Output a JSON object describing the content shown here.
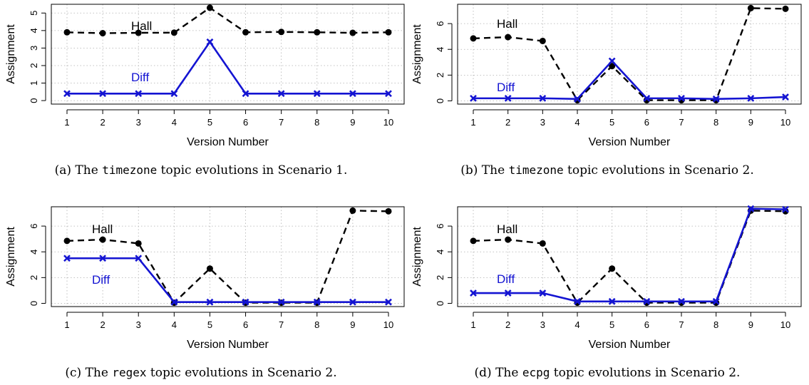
{
  "colors": {
    "hall": "#000000",
    "diff": "#1414d2"
  },
  "chart_data": [
    {
      "type": "line",
      "x": [
        1,
        2,
        3,
        4,
        5,
        6,
        7,
        8,
        9,
        10
      ],
      "xlabel": "Version Number",
      "ylabel": "Assignment",
      "yticks": [
        0,
        1,
        2,
        3,
        4,
        5
      ],
      "ylim": [
        -0.2,
        5.5
      ],
      "grid": true,
      "series": [
        {
          "name": "Hall",
          "style": "dashed",
          "marker": "circle",
          "values": [
            3.9,
            3.85,
            3.87,
            3.88,
            5.3,
            3.9,
            3.92,
            3.9,
            3.87,
            3.9
          ]
        },
        {
          "name": "Diff",
          "style": "solid",
          "marker": "x",
          "values": [
            0.4,
            0.4,
            0.4,
            0.4,
            3.35,
            0.4,
            0.4,
            0.4,
            0.4,
            0.4
          ]
        }
      ],
      "caption": {
        "prefix": "(a) The ",
        "code": "timezone",
        "suffix": " topic evolutions in Scenario 1."
      }
    },
    {
      "type": "line",
      "x": [
        1,
        2,
        3,
        4,
        5,
        6,
        7,
        8,
        9,
        10
      ],
      "xlabel": "Version Number",
      "ylabel": "Assignment",
      "yticks": [
        0,
        2,
        4,
        6
      ],
      "ylim": [
        -0.25,
        7.5
      ],
      "grid": true,
      "series": [
        {
          "name": "Hall",
          "style": "dashed",
          "marker": "circle",
          "values": [
            4.85,
            4.95,
            4.65,
            0.05,
            2.7,
            0.05,
            0.05,
            0.05,
            7.2,
            7.15
          ]
        },
        {
          "name": "Diff",
          "style": "solid",
          "marker": "x",
          "values": [
            0.2,
            0.2,
            0.2,
            0.15,
            3.1,
            0.2,
            0.2,
            0.15,
            0.2,
            0.3
          ]
        }
      ],
      "caption": {
        "prefix": "(b) The ",
        "code": "timezone",
        "suffix": " topic evolutions in Scenario 2."
      }
    },
    {
      "type": "line",
      "x": [
        1,
        2,
        3,
        4,
        5,
        6,
        7,
        8,
        9,
        10
      ],
      "xlabel": "Version Number",
      "ylabel": "Assignment",
      "yticks": [
        0,
        2,
        4,
        6
      ],
      "ylim": [
        -0.25,
        7.5
      ],
      "grid": true,
      "series": [
        {
          "name": "Hall",
          "style": "dashed",
          "marker": "circle",
          "values": [
            4.85,
            4.95,
            4.65,
            0.05,
            2.7,
            0.05,
            0.05,
            0.05,
            7.2,
            7.15
          ]
        },
        {
          "name": "Diff",
          "style": "solid",
          "marker": "x",
          "values": [
            3.5,
            3.5,
            3.5,
            0.1,
            0.1,
            0.1,
            0.1,
            0.1,
            0.1,
            0.1
          ]
        }
      ],
      "caption": {
        "prefix": "(c) The ",
        "code": "regex",
        "suffix": " topic evolutions in Scenario 2."
      }
    },
    {
      "type": "line",
      "x": [
        1,
        2,
        3,
        4,
        5,
        6,
        7,
        8,
        9,
        10
      ],
      "xlabel": "Version Number",
      "ylabel": "Assignment",
      "yticks": [
        0,
        2,
        4,
        6
      ],
      "ylim": [
        -0.25,
        7.5
      ],
      "grid": true,
      "series": [
        {
          "name": "Hall",
          "style": "dashed",
          "marker": "circle",
          "values": [
            4.85,
            4.95,
            4.65,
            0.05,
            2.7,
            0.05,
            0.05,
            0.05,
            7.2,
            7.15
          ]
        },
        {
          "name": "Diff",
          "style": "solid",
          "marker": "x",
          "values": [
            0.8,
            0.8,
            0.8,
            0.15,
            0.15,
            0.15,
            0.15,
            0.15,
            7.35,
            7.3
          ]
        }
      ],
      "caption": {
        "prefix": "(d) The ",
        "code": "ecpg",
        "suffix": " topic evolutions in Scenario 2."
      }
    }
  ]
}
